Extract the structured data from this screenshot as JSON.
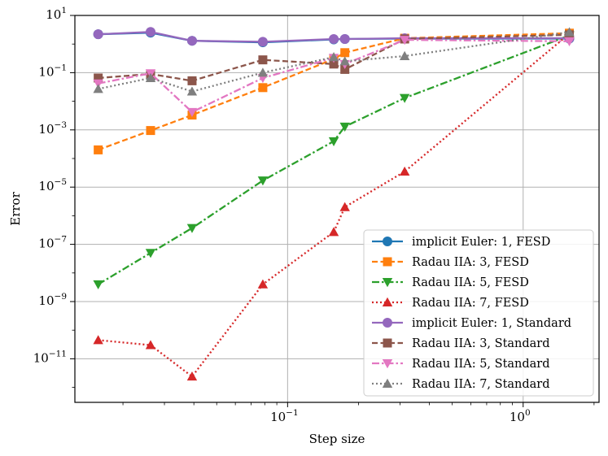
{
  "chart_data": {
    "type": "line",
    "title": "",
    "xlabel": "Step size",
    "ylabel": "Error",
    "xscale": "log",
    "yscale": "log",
    "xlim": [
      0.0125,
      2.1
    ],
    "ylim": [
      3e-13,
      10
    ],
    "grid": true,
    "legend_position": "lower-right",
    "x_ticks": [
      {
        "value": 0.1,
        "base": "10",
        "exp": "−1"
      },
      {
        "value": 1,
        "base": "10",
        "exp": "0"
      }
    ],
    "y_ticks": [
      {
        "value": 10,
        "base": "10",
        "exp": "1"
      },
      {
        "value": 0.1,
        "base": "10",
        "exp": "−1"
      },
      {
        "value": 0.001,
        "base": "10",
        "exp": "−3"
      },
      {
        "value": 1e-05,
        "base": "10",
        "exp": "−5"
      },
      {
        "value": 1e-07,
        "base": "10",
        "exp": "−7"
      },
      {
        "value": 1e-09,
        "base": "10",
        "exp": "−9"
      },
      {
        "value": 1e-11,
        "base": "10",
        "exp": "−11"
      }
    ],
    "series": [
      {
        "name": "implicit Euler: 1, FESD",
        "color": "#1f77b4",
        "dash": "solid",
        "marker": "circle",
        "x": [
          0.0157,
          0.0262,
          0.0393,
          0.0785,
          0.157,
          0.175,
          0.314,
          1.571
        ],
        "y": [
          2.2,
          2.5,
          1.3,
          1.15,
          1.45,
          1.5,
          1.55,
          1.55
        ]
      },
      {
        "name": "Radau IIA: 3, FESD",
        "color": "#ff7f0e",
        "dash": "dashed",
        "marker": "square",
        "x": [
          0.0157,
          0.0262,
          0.0393,
          0.0785,
          0.157,
          0.175,
          0.314,
          1.571
        ],
        "y": [
          0.0002,
          0.00095,
          0.0033,
          0.03,
          0.3,
          0.5,
          1.6,
          2.4
        ]
      },
      {
        "name": "Radau IIA: 5, FESD",
        "color": "#2ca02c",
        "dash": "dashdot",
        "marker": "triangle-down",
        "x": [
          0.0157,
          0.0262,
          0.0393,
          0.0785,
          0.157,
          0.175,
          0.314,
          1.571
        ],
        "y": [
          4e-09,
          5e-08,
          3.7e-07,
          1.7e-05,
          0.0004,
          0.0013,
          0.013,
          2.0
        ]
      },
      {
        "name": "Radau IIA: 7, FESD",
        "color": "#d62728",
        "dash": "dotted",
        "marker": "triangle-up",
        "x": [
          0.0157,
          0.0262,
          0.0393,
          0.0785,
          0.157,
          0.175,
          0.314,
          1.571
        ],
        "y": [
          4.5e-11,
          3e-11,
          2.4e-12,
          4e-09,
          2.7e-07,
          2e-06,
          3.5e-05,
          2.3
        ]
      },
      {
        "name": "implicit Euler: 1, Standard",
        "color": "#9467bd",
        "dash": "solid",
        "marker": "circle",
        "x": [
          0.0157,
          0.0262,
          0.0393,
          0.0785,
          0.157,
          0.175,
          0.314,
          1.571
        ],
        "y": [
          2.2,
          2.65,
          1.3,
          1.2,
          1.5,
          1.5,
          1.6,
          1.6
        ]
      },
      {
        "name": "Radau IIA: 3, Standard",
        "color": "#8c564b",
        "dash": "dashed",
        "marker": "square",
        "x": [
          0.0157,
          0.0262,
          0.0393,
          0.0785,
          0.157,
          0.175,
          0.314,
          1.571
        ],
        "y": [
          0.065,
          0.09,
          0.052,
          0.28,
          0.2,
          0.13,
          1.5,
          2.1
        ]
      },
      {
        "name": "Radau IIA: 5, Standard",
        "color": "#e377c2",
        "dash": "dashdot",
        "marker": "triangle-down",
        "x": [
          0.0157,
          0.0262,
          0.0393,
          0.0785,
          0.157,
          0.175,
          0.314,
          1.571
        ],
        "y": [
          0.042,
          0.095,
          0.0042,
          0.065,
          0.33,
          0.2,
          1.4,
          1.25
        ]
      },
      {
        "name": "Radau IIA: 7, Standard",
        "color": "#7f7f7f",
        "dash": "dotted",
        "marker": "triangle-up",
        "x": [
          0.0157,
          0.0262,
          0.0393,
          0.0785,
          0.157,
          0.175,
          0.314,
          1.571
        ],
        "y": [
          0.027,
          0.065,
          0.022,
          0.1,
          0.35,
          0.25,
          0.38,
          2.6
        ]
      }
    ]
  }
}
